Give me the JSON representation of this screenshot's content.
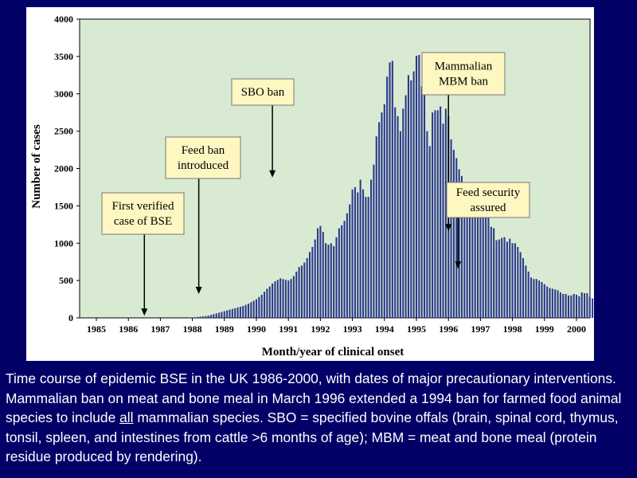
{
  "chart_data": {
    "type": "bar",
    "title": "",
    "xlabel": "Month/year of clinical onset",
    "ylabel": "Number of cases",
    "ylim": [
      0,
      4000
    ],
    "y_ticks": [
      "0",
      "500",
      "1000",
      "1500",
      "2000",
      "2500",
      "3000",
      "3500",
      "4000"
    ],
    "x_ticks": [
      "1985",
      "1986",
      "1987",
      "1988",
      "1989",
      "1990",
      "1991",
      "1992",
      "1993",
      "1994",
      "1995",
      "1996",
      "1997",
      "1998",
      "1999",
      "2000"
    ],
    "x_start_year": 1985,
    "grid": false,
    "plot_background": "#d9ead3",
    "bar_color": "#2c3a8c",
    "series": [
      {
        "name": "",
        "x_start": 1985.0,
        "x_step_months": 1,
        "values": [
          0,
          0,
          0,
          0,
          0,
          0,
          0,
          0,
          0,
          0,
          0,
          0,
          0,
          0,
          0,
          0,
          0,
          0,
          0,
          0,
          0,
          0,
          0,
          0,
          0,
          0,
          0,
          0,
          0,
          0,
          0,
          0,
          0,
          0,
          0,
          2,
          5,
          8,
          12,
          16,
          20,
          25,
          30,
          40,
          50,
          60,
          70,
          80,
          90,
          100,
          110,
          120,
          130,
          140,
          150,
          160,
          175,
          190,
          210,
          230,
          250,
          280,
          310,
          350,
          390,
          420,
          460,
          490,
          510,
          530,
          520,
          510,
          500,
          520,
          560,
          620,
          680,
          700,
          740,
          800,
          880,
          950,
          1050,
          1200,
          1230,
          1150,
          1000,
          980,
          1000,
          960,
          1080,
          1200,
          1240,
          1300,
          1400,
          1520,
          1720,
          1750,
          1680,
          1850,
          1720,
          1620,
          1620,
          1850,
          2050,
          2430,
          2620,
          2750,
          2860,
          3230,
          3420,
          3440,
          2820,
          2700,
          2500,
          2800,
          2980,
          3250,
          3180,
          3300,
          3510,
          3520,
          3100,
          3100,
          2500,
          2300,
          2750,
          2780,
          2780,
          2830,
          2600,
          2800,
          2700,
          2390,
          2250,
          2140,
          1990,
          1900,
          1760,
          1700,
          1720,
          1650,
          1660,
          1550,
          1550,
          1410,
          1500,
          1380,
          1220,
          1200,
          1040,
          1050,
          1070,
          1080,
          1020,
          1060,
          1000,
          1000,
          950,
          880,
          800,
          700,
          620,
          540,
          520,
          520,
          500,
          480,
          450,
          420,
          400,
          390,
          380,
          370,
          340,
          320,
          320,
          300,
          300,
          320,
          310,
          290,
          340,
          330,
          330,
          280,
          260,
          240,
          250,
          240,
          230,
          250,
          240,
          250,
          230,
          250,
          250,
          230,
          220,
          200,
          190,
          180,
          170,
          160,
          150,
          150,
          140,
          140,
          130,
          130,
          120,
          110,
          100,
          100,
          100,
          90,
          80,
          80,
          80
        ]
      }
    ],
    "annotations": [
      {
        "lines": [
          "First verified",
          "case of BSE"
        ],
        "x": 1986.5,
        "y_tip": 30
      },
      {
        "lines": [
          "Feed ban",
          "introduced"
        ],
        "x": 1988.2,
        "y_tip": 320
      },
      {
        "lines": [
          "SBO ban"
        ],
        "x": 1990.5,
        "y_tip": 1880
      },
      {
        "lines": [
          "Mammalian",
          "MBM ban"
        ],
        "x": 1996.0,
        "y_tip": 1160
      },
      {
        "lines": [
          "Feed security",
          "assured"
        ],
        "x": 1996.3,
        "y_tip": 660
      }
    ]
  },
  "caption": {
    "part1": "Time course of epidemic BSE in the UK 1986-2000, with dates of major precautionary interventions. Mammalian ban on meat and bone meal in March 1996 extended a 1994 ban for farmed food animal species to include ",
    "underlined": "all",
    "part2": " mammalian species. SBO = specified bovine offals (brain, spinal cord, thymus, tonsil, spleen, and intestines from cattle >6 months of age); MBM = meat and bone meal (protein residue produced by rendering)."
  }
}
